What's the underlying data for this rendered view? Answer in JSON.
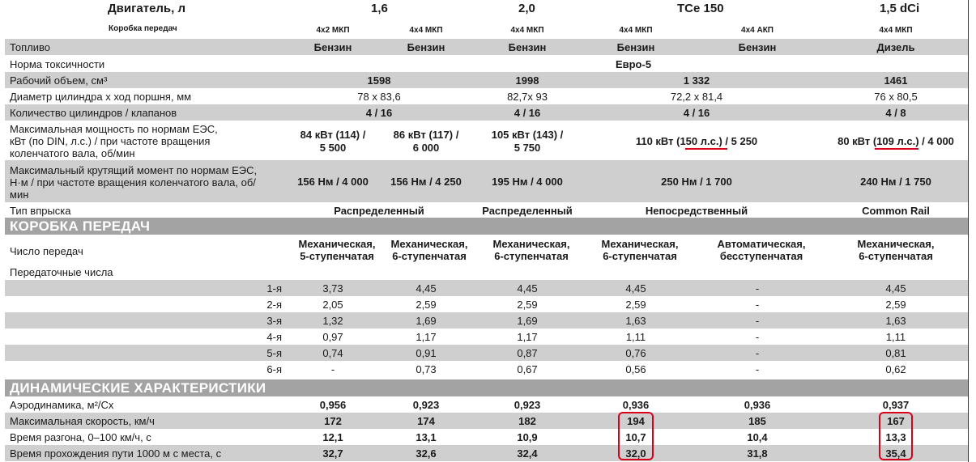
{
  "header": {
    "engine_label": "Двигатель, л",
    "gearbox_label": "Коробка передач",
    "engines": [
      "1,6",
      "2,0",
      "TCe 150",
      "1,5 dCi"
    ],
    "gearboxes": [
      "4x2 МКП",
      "4x4 МКП",
      "4x4 МКП",
      "4x4 МКП",
      "4x4 АКП",
      "4x4 МКП"
    ]
  },
  "rows": {
    "fuel": {
      "label": "Топливо",
      "values": [
        "Бензин",
        "Бензин",
        "Бензин",
        "Бензин",
        "Бензин",
        "Дизель"
      ]
    },
    "toxicity": {
      "label": "Норма токсичности",
      "value": "Евро-5"
    },
    "volume": {
      "label": "Рабочий объем, см³",
      "values": [
        "1598",
        "1998",
        "1 332",
        "1461"
      ]
    },
    "bore": {
      "label": "Диаметр цилиндра х ход поршня, мм",
      "values": [
        "78 x 83,6",
        "82,7x 93",
        "72,2 x 81,4",
        "76 x 80,5"
      ]
    },
    "cyl": {
      "label": "Количество цилиндров / клапанов",
      "values": [
        "4 / 16",
        "4 / 16",
        "4 / 16",
        "4 / 8"
      ]
    },
    "power": {
      "label_lines": [
        "Максимальная мощность по нормам ЕЭС,",
        "кВт (по DIN, л.с.) / при частоте вращения",
        "коленчатого вала, об/мин"
      ],
      "v1": [
        "84 кВт (114) /",
        "5 500"
      ],
      "v2": [
        "86 кВт (117) /",
        "6 000"
      ],
      "v3": [
        "105 кВт (143) /",
        "5 750"
      ],
      "v4": {
        "pre": "110 кВт (",
        "hl": "150 л.с.",
        "post": ") / 5 250"
      },
      "v5": {
        "pre": "80 кВт (",
        "hl": "109 л.с.",
        "post": ") / 4 000"
      }
    },
    "torque": {
      "label_lines": [
        "Максимальный крутящий момент по нормам ЕЭС,",
        "Н·м / при частоте вращения коленчатого вала, об/",
        "мин"
      ],
      "values": [
        "156 Нм / 4 000",
        "156 Нм / 4 250",
        "195 Нм / 4 000",
        "250 Нм / 1 700",
        "240 Нм / 1 750"
      ]
    },
    "injection": {
      "label": "Тип впрыска",
      "values": [
        "Распределенный",
        "Распределенный",
        "Непосредственный",
        "Common Rail"
      ]
    }
  },
  "gearbox_section": {
    "title": "КОРОБКА ПЕРЕДАЧ",
    "gears_label": "Число передач",
    "types": [
      [
        "Механическая,",
        "5-ступенчатая"
      ],
      [
        "Механическая,",
        "6-ступенчатая"
      ],
      [
        "Механическая,",
        "6-ступенчатая"
      ],
      [
        "Механическая,",
        "6-ступенчатая"
      ],
      [
        "Автоматическая,",
        "бесступенчатая"
      ],
      [
        "Механическая,",
        "6-ступенчатая"
      ]
    ],
    "ratios_label": "Передаточные числа",
    "ratios": [
      {
        "gear": "1-я",
        "values": [
          "3,73",
          "4,45",
          "4,45",
          "4,45",
          "-",
          "4,45"
        ]
      },
      {
        "gear": "2-я",
        "values": [
          "2,05",
          "2,59",
          "2,59",
          "2,59",
          "-",
          "2,59"
        ]
      },
      {
        "gear": "3-я",
        "values": [
          "1,32",
          "1,69",
          "1,69",
          "1,63",
          "-",
          "1,63"
        ]
      },
      {
        "gear": "4-я",
        "values": [
          "0,97",
          "1,17",
          "1,17",
          "1,11",
          "-",
          "1,11"
        ]
      },
      {
        "gear": "5-я",
        "values": [
          "0,74",
          "0,91",
          "0,87",
          "0,76",
          "-",
          "0,81"
        ]
      },
      {
        "gear": "6-я",
        "values": [
          "-",
          "0,73",
          "0,67",
          "0,56",
          "-",
          "0,62"
        ]
      }
    ]
  },
  "dynamics_section": {
    "title": "ДИНАМИЧЕСКИЕ ХАРАКТЕРИСТИКИ",
    "rows": [
      {
        "label": "Аэродинамика, м²/Сх",
        "values": [
          "0,956",
          "0,923",
          "0,923",
          "0,936",
          "0,936",
          "0,937"
        ]
      },
      {
        "label": "Максимальная скорость, км/ч",
        "values": [
          "172",
          "174",
          "182",
          "194",
          "185",
          "167"
        ]
      },
      {
        "label": "Время разгона, 0–100 км/ч, с",
        "values": [
          "12,1",
          "13,1",
          "10,9",
          "10,7",
          "10,4",
          "13,3"
        ]
      },
      {
        "label": "Время прохождения пути 1000 м с места, с",
        "values": [
          "32,7",
          "32,6",
          "32,4",
          "32,0",
          "31,8",
          "35,4"
        ]
      }
    ]
  },
  "colors": {
    "highlight": "#d8001a",
    "section": "#a3a3a3",
    "band": "#cfcfcf"
  }
}
